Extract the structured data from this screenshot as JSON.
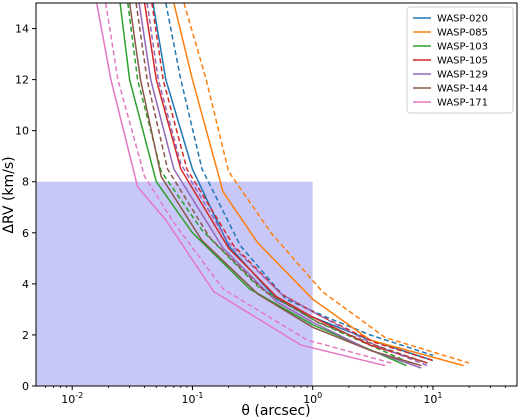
{
  "chart_data": {
    "type": "line",
    "xlabel": "θ (arcsec)",
    "ylabel": "ΔRV (km/s)",
    "x_scale": "log",
    "xlim": [
      0.005,
      50
    ],
    "ylim": [
      0,
      15
    ],
    "x_ticks": [
      {
        "value": 0.01,
        "label": "10",
        "exp": "-2"
      },
      {
        "value": 0.1,
        "label": "10",
        "exp": "-1"
      },
      {
        "value": 1,
        "label": "10",
        "exp": "0"
      },
      {
        "value": 10,
        "label": "10",
        "exp": "1"
      }
    ],
    "y_ticks": [
      0,
      2,
      4,
      6,
      8,
      10,
      12,
      14
    ],
    "grid": false,
    "legend_position": "top-right",
    "shaded_region": {
      "x": [
        0.005,
        1
      ],
      "y": [
        0,
        8
      ],
      "color": "#c8c8f8"
    },
    "series": [
      {
        "name": "WASP-020",
        "color": "#1f77b4",
        "solid": [
          [
            0.047,
            15
          ],
          [
            0.06,
            12
          ],
          [
            0.1,
            8.5
          ],
          [
            0.2,
            5.5
          ],
          [
            0.5,
            3.4
          ],
          [
            1,
            2.7
          ],
          [
            3,
            1.8
          ],
          [
            10,
            1
          ]
        ],
        "dashed": [
          [
            0.06,
            15
          ],
          [
            0.08,
            12
          ],
          [
            0.12,
            8.5
          ],
          [
            0.25,
            5.5
          ],
          [
            0.6,
            3.4
          ],
          [
            1.3,
            2.7
          ],
          [
            3,
            2
          ],
          [
            10,
            1.2
          ]
        ]
      },
      {
        "name": "WASP-085",
        "color": "#ff7f0e",
        "solid": [
          [
            0.07,
            15
          ],
          [
            0.1,
            12
          ],
          [
            0.18,
            7.6
          ],
          [
            0.35,
            5.6
          ],
          [
            1,
            3.4
          ],
          [
            3,
            1.8
          ],
          [
            18,
            0.8
          ]
        ],
        "dashed": [
          [
            0.085,
            15
          ],
          [
            0.13,
            12
          ],
          [
            0.2,
            8.4
          ],
          [
            0.45,
            6
          ],
          [
            1.2,
            3.7
          ],
          [
            4,
            1.9
          ],
          [
            20,
            0.9
          ]
        ]
      },
      {
        "name": "WASP-103",
        "color": "#2ca02c",
        "solid": [
          [
            0.025,
            15
          ],
          [
            0.03,
            12
          ],
          [
            0.05,
            8
          ],
          [
            0.1,
            6
          ],
          [
            0.3,
            3.8
          ],
          [
            1,
            2.4
          ],
          [
            6,
            0.8
          ]
        ],
        "dashed": [
          [
            0.029,
            15
          ],
          [
            0.035,
            12
          ],
          [
            0.055,
            8.4
          ],
          [
            0.12,
            6.1
          ],
          [
            0.35,
            3.9
          ],
          [
            1.1,
            2.5
          ],
          [
            6.5,
            0.9
          ]
        ]
      },
      {
        "name": "WASP-105",
        "color": "#d62728",
        "solid": [
          [
            0.04,
            15
          ],
          [
            0.05,
            12
          ],
          [
            0.08,
            8.5
          ],
          [
            0.2,
            5.4
          ],
          [
            0.5,
            3.5
          ],
          [
            1,
            2.7
          ],
          [
            3,
            1.6
          ],
          [
            9,
            0.9
          ]
        ],
        "dashed": [
          [
            0.046,
            15
          ],
          [
            0.057,
            12
          ],
          [
            0.09,
            8.5
          ],
          [
            0.22,
            5.5
          ],
          [
            0.55,
            3.6
          ],
          [
            1.1,
            2.8
          ],
          [
            3.3,
            1.7
          ],
          [
            10,
            1
          ]
        ]
      },
      {
        "name": "WASP-129",
        "color": "#9467bd",
        "solid": [
          [
            0.036,
            15
          ],
          [
            0.045,
            12
          ],
          [
            0.07,
            8.5
          ],
          [
            0.18,
            5.4
          ],
          [
            0.5,
            3.3
          ],
          [
            1,
            2.5
          ],
          [
            3,
            1.4
          ],
          [
            8,
            0.7
          ]
        ],
        "dashed": [
          [
            0.042,
            15
          ],
          [
            0.052,
            12
          ],
          [
            0.08,
            8.7
          ],
          [
            0.2,
            5.6
          ],
          [
            0.55,
            3.6
          ],
          [
            1.1,
            2.8
          ],
          [
            3.3,
            1.6
          ],
          [
            9,
            0.8
          ]
        ]
      },
      {
        "name": "WASP-144",
        "color": "#8c564b",
        "solid": [
          [
            0.03,
            15
          ],
          [
            0.037,
            12
          ],
          [
            0.055,
            8.2
          ],
          [
            0.12,
            5.7
          ],
          [
            0.35,
            3.6
          ],
          [
            1,
            2.3
          ],
          [
            3,
            1.4
          ],
          [
            8,
            0.8
          ]
        ],
        "dashed": [
          [
            0.034,
            15
          ],
          [
            0.042,
            12
          ],
          [
            0.062,
            8.5
          ],
          [
            0.14,
            5.8
          ],
          [
            0.4,
            3.7
          ],
          [
            1.1,
            2.5
          ],
          [
            3.3,
            1.6
          ],
          [
            9,
            0.9
          ]
        ]
      },
      {
        "name": "WASP-171",
        "color": "#e377c2",
        "solid": [
          [
            0.016,
            15
          ],
          [
            0.021,
            12
          ],
          [
            0.035,
            7.8
          ],
          [
            0.06,
            6.5
          ],
          [
            0.15,
            3.7
          ],
          [
            0.8,
            1.6
          ],
          [
            4,
            0.8
          ]
        ],
        "dashed": [
          [
            0.019,
            15
          ],
          [
            0.024,
            12
          ],
          [
            0.04,
            8.2
          ],
          [
            0.07,
            6.4
          ],
          [
            0.18,
            3.8
          ],
          [
            0.9,
            1.8
          ],
          [
            4.5,
            0.9
          ]
        ]
      }
    ]
  }
}
